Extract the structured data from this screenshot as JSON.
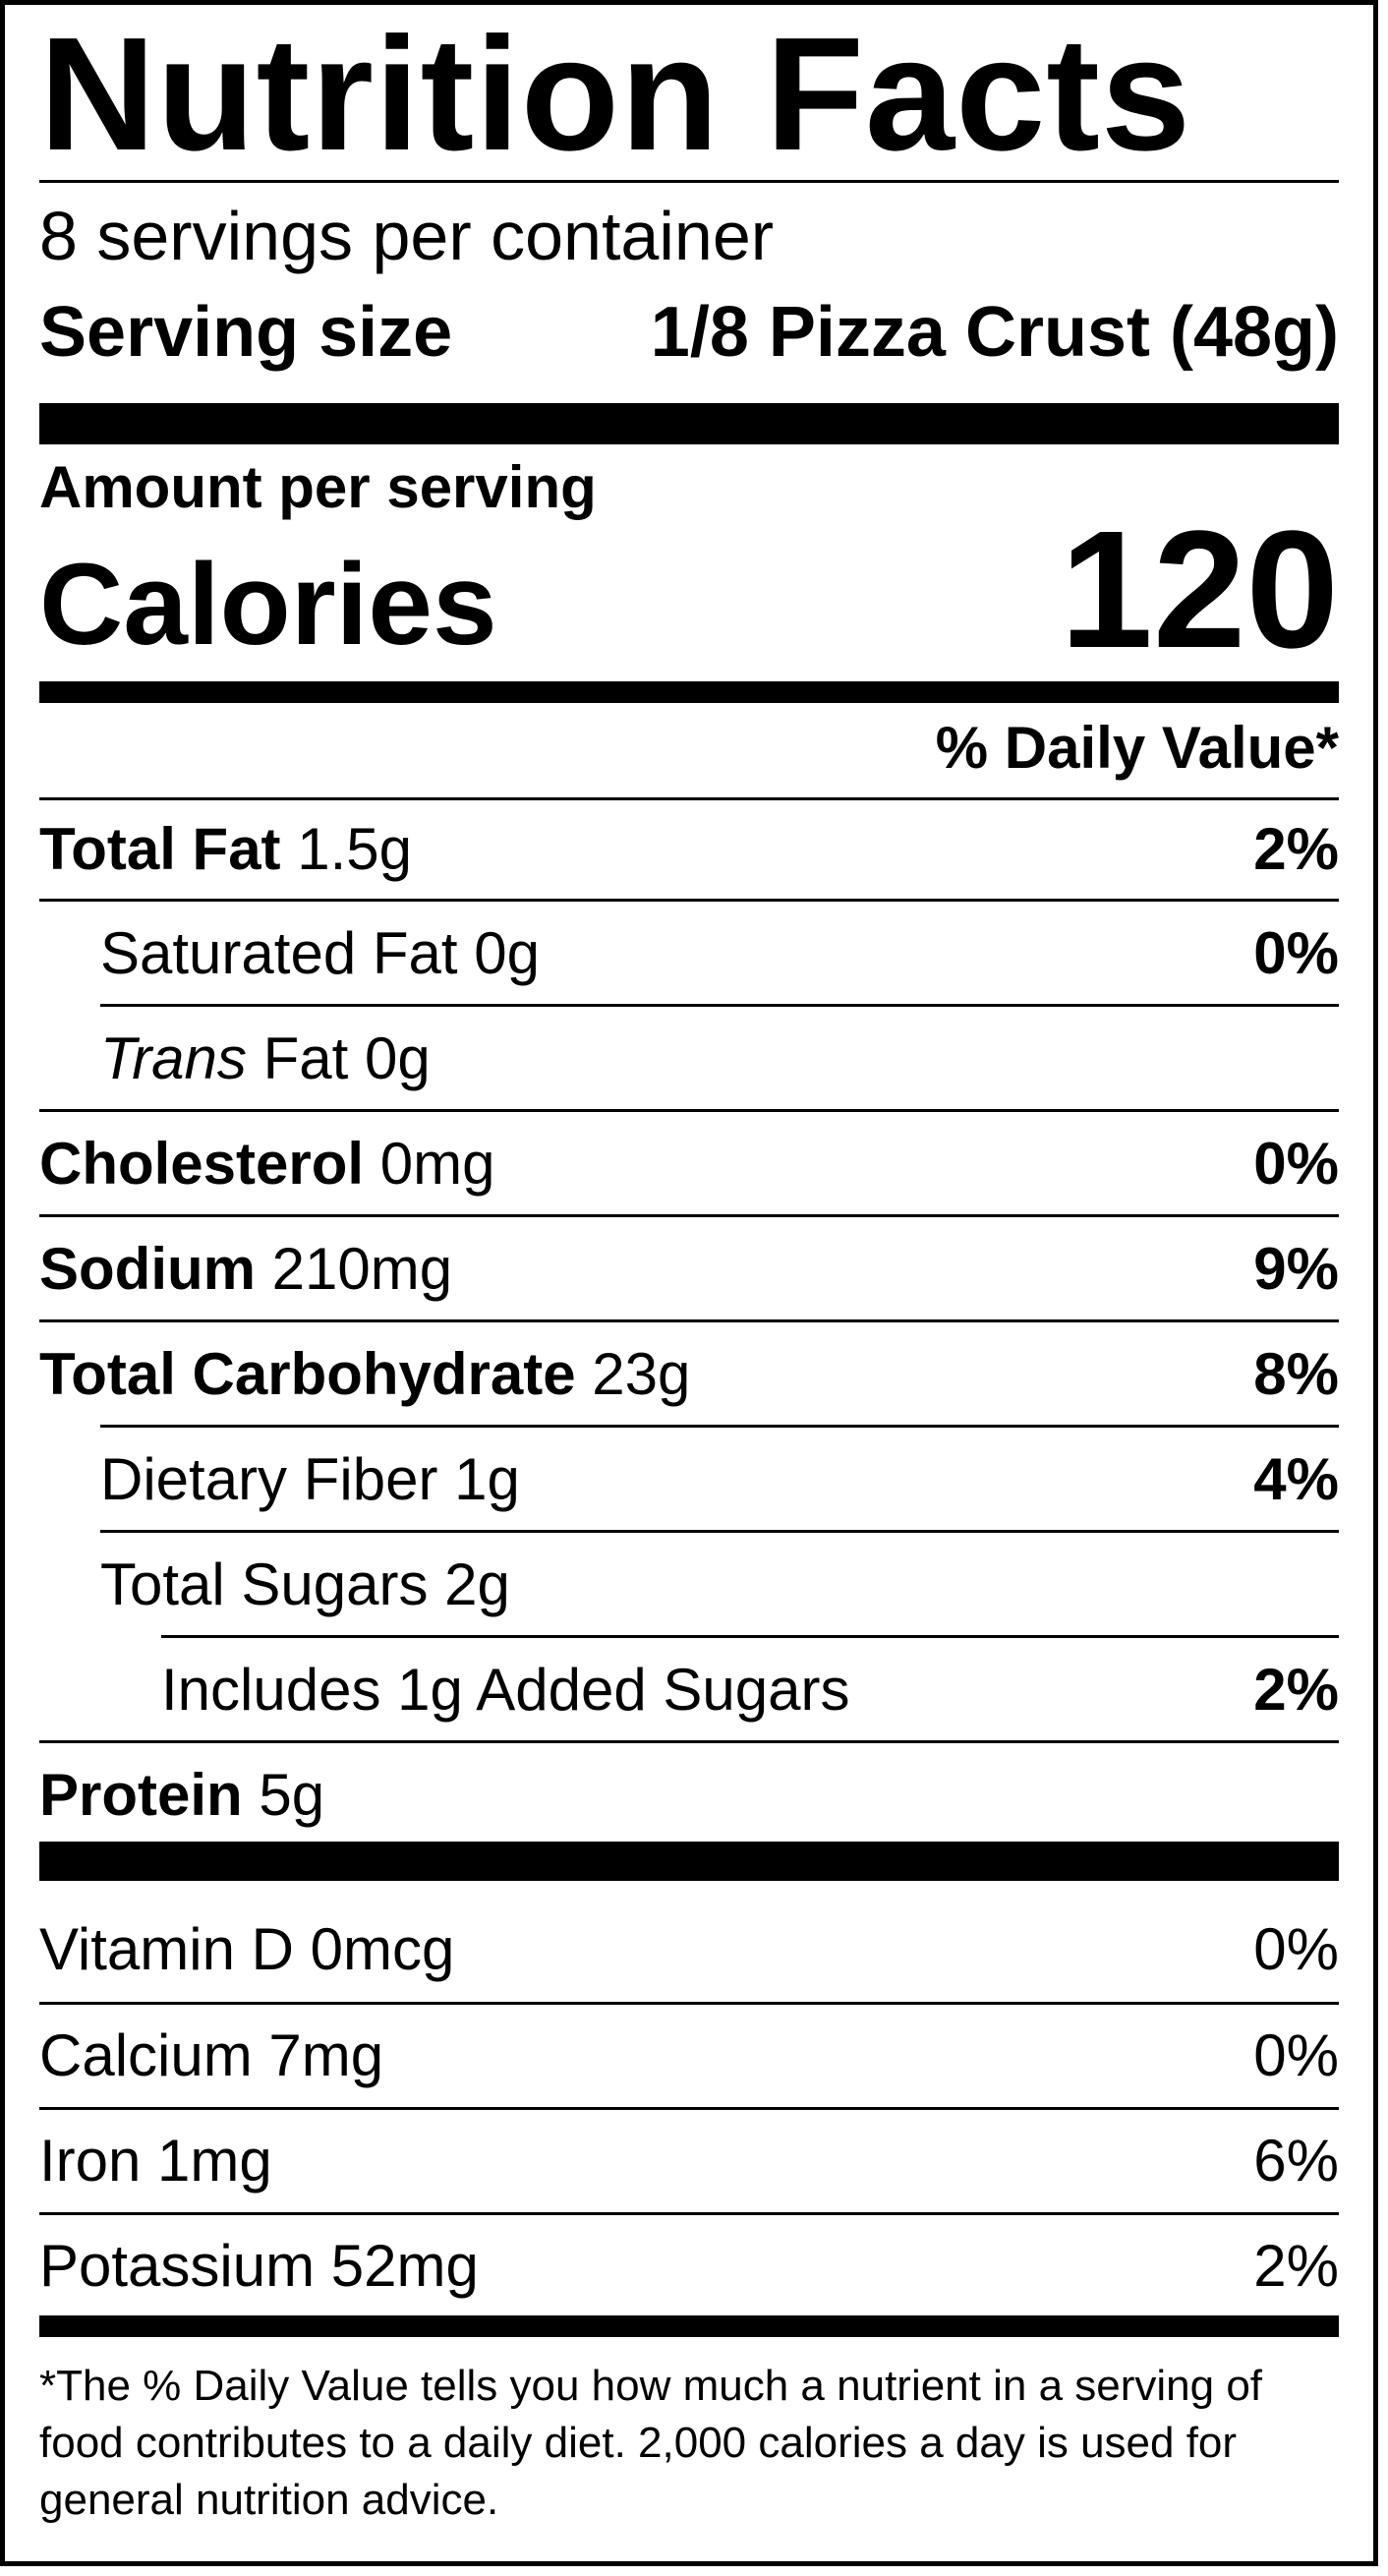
{
  "label": {
    "title": "Nutrition Facts",
    "servings_per_container": "8 servings per container",
    "serving_size_label": "Serving size",
    "serving_size_value": "1/8 Pizza Crust (48g)",
    "amount_per_serving": "Amount per serving",
    "calories_label": "Calories",
    "calories_value": "120",
    "daily_value_header": "% Daily Value*"
  },
  "nutrients": {
    "total_fat": {
      "name": "Total Fat",
      "amount": "1.5g",
      "dv": "2%"
    },
    "saturated_fat": {
      "name": "Saturated Fat 0g",
      "dv": "0%"
    },
    "trans_fat": {
      "name_italic": "Trans",
      "name_rest": "Fat 0g"
    },
    "cholesterol": {
      "name": "Cholesterol",
      "amount": "0mg",
      "dv": "0%"
    },
    "sodium": {
      "name": "Sodium",
      "amount": "210mg",
      "dv": "9%"
    },
    "total_carbohydrate": {
      "name": "Total Carbohydrate",
      "amount": "23g",
      "dv": "8%"
    },
    "dietary_fiber": {
      "name": "Dietary Fiber 1g",
      "dv": "4%"
    },
    "total_sugars": {
      "name": "Total Sugars 2g"
    },
    "added_sugars": {
      "name": "Includes 1g Added Sugars",
      "dv": "2%"
    },
    "protein": {
      "name": "Protein",
      "amount": "5g"
    }
  },
  "vitamins": {
    "vitamin_d": {
      "name": "Vitamin D 0mcg",
      "dv": "0%"
    },
    "calcium": {
      "name": "Calcium 7mg",
      "dv": "0%"
    },
    "iron": {
      "name": "Iron 1mg",
      "dv": "6%"
    },
    "potassium": {
      "name": "Potassium 52mg",
      "dv": "2%"
    }
  },
  "footnote": "*The % Daily Value tells you how much a nutrient in a serving of food contributes to a daily diet. 2,000 calories a day is used for general nutrition advice."
}
